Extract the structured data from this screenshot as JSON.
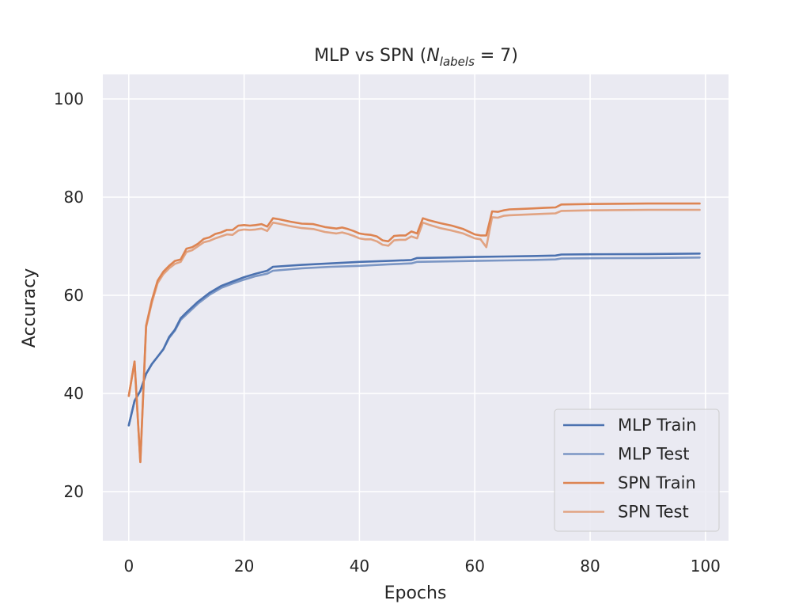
{
  "chart_data": {
    "type": "line",
    "title": {
      "prefix": "MLP vs SPN (",
      "math_symbol": "N",
      "math_subscript": "labels",
      "math_rest": " = 7",
      "suffix": ")"
    },
    "xlabel": "Epochs",
    "ylabel": "Accuracy",
    "xlim": [
      -4.5,
      104
    ],
    "ylim": [
      10,
      105
    ],
    "xticks": [
      0,
      20,
      40,
      60,
      80,
      100
    ],
    "yticks": [
      20,
      40,
      60,
      80,
      100
    ],
    "grid": true,
    "legend_position": "lower-right",
    "background_color": "#eaeaf2",
    "series": [
      {
        "name": "MLP Train",
        "color": "#4c72b0",
        "opacity": 1.0,
        "x": [
          0,
          1,
          2,
          3,
          4,
          5,
          6,
          7,
          8,
          9,
          10,
          12,
          14,
          16,
          18,
          20,
          22,
          24,
          25,
          30,
          35,
          40,
          45,
          49,
          50,
          55,
          60,
          65,
          70,
          74,
          75,
          80,
          90,
          99
        ],
        "values": [
          33.5,
          38.5,
          40.5,
          44,
          46,
          47.5,
          49,
          51.5,
          53,
          55.3,
          56.5,
          58.7,
          60.5,
          61.9,
          62.8,
          63.7,
          64.4,
          65,
          65.8,
          66.2,
          66.5,
          66.8,
          67.0,
          67.2,
          67.6,
          67.7,
          67.8,
          67.9,
          68.0,
          68.1,
          68.3,
          68.35,
          68.4,
          68.5
        ]
      },
      {
        "name": "MLP Test",
        "color": "#4c72b0",
        "opacity": 0.7,
        "x": [
          0,
          1,
          2,
          3,
          4,
          5,
          6,
          7,
          8,
          9,
          10,
          12,
          14,
          16,
          18,
          20,
          22,
          24,
          25,
          30,
          35,
          40,
          45,
          49,
          50,
          55,
          60,
          65,
          70,
          74,
          75,
          80,
          90,
          99
        ],
        "values": [
          33.5,
          38.5,
          40.5,
          44,
          46,
          47.5,
          49,
          51.3,
          52.8,
          55,
          56.1,
          58.3,
          60.1,
          61.5,
          62.4,
          63.2,
          63.9,
          64.4,
          65.0,
          65.5,
          65.8,
          66.0,
          66.3,
          66.5,
          66.8,
          66.9,
          67.0,
          67.1,
          67.2,
          67.3,
          67.5,
          67.55,
          67.6,
          67.7
        ]
      },
      {
        "name": "SPN Train",
        "color": "#dd8452",
        "opacity": 1.0,
        "x": [
          0,
          1,
          2,
          3,
          4,
          5,
          6,
          7,
          8,
          9,
          10,
          11,
          12,
          13,
          14,
          15,
          16,
          17,
          18,
          19,
          20,
          21,
          22,
          23,
          24,
          25,
          26,
          28,
          30,
          32,
          34,
          36,
          37,
          38,
          39,
          40,
          41,
          42,
          43,
          44,
          45,
          46,
          47,
          48,
          49,
          50,
          51,
          52,
          54,
          56,
          58,
          60,
          61,
          62,
          63,
          64,
          65,
          66,
          68,
          70,
          72,
          74,
          75,
          80,
          90,
          99
        ],
        "values": [
          39.5,
          46.5,
          26,
          53.8,
          59,
          63,
          64.8,
          66,
          67,
          67.3,
          69.5,
          69.8,
          70.5,
          71.5,
          71.8,
          72.5,
          72.8,
          73.3,
          73.3,
          74.2,
          74.3,
          74.2,
          74.3,
          74.5,
          74,
          75.7,
          75.5,
          75,
          74.6,
          74.5,
          73.9,
          73.6,
          73.8,
          73.5,
          73.1,
          72.6,
          72.4,
          72.3,
          72,
          71.2,
          71,
          72.1,
          72.2,
          72.2,
          73,
          72.6,
          75.7,
          75.3,
          74.7,
          74.2,
          73.5,
          72.4,
          72.2,
          72.2,
          77.1,
          77,
          77.3,
          77.5,
          77.6,
          77.7,
          77.8,
          77.9,
          78.5,
          78.6,
          78.7,
          78.7
        ]
      },
      {
        "name": "SPN Test",
        "color": "#dd8452",
        "opacity": 0.7,
        "x": [
          0,
          1,
          2,
          3,
          4,
          5,
          6,
          7,
          8,
          9,
          10,
          11,
          12,
          13,
          14,
          15,
          16,
          17,
          18,
          19,
          20,
          21,
          22,
          23,
          24,
          25,
          26,
          28,
          30,
          32,
          34,
          36,
          37,
          38,
          39,
          40,
          41,
          42,
          43,
          44,
          45,
          46,
          47,
          48,
          49,
          50,
          51,
          52,
          54,
          56,
          58,
          60,
          61,
          62,
          63,
          64,
          65,
          66,
          68,
          70,
          72,
          74,
          75,
          80,
          90,
          99
        ],
        "values": [
          39.5,
          46.5,
          26,
          53.5,
          58.5,
          62.5,
          64.3,
          65.5,
          66.4,
          66.8,
          68.8,
          69.2,
          70,
          70.8,
          71.1,
          71.6,
          72,
          72.4,
          72.3,
          73.2,
          73.4,
          73.3,
          73.4,
          73.6,
          73.1,
          74.8,
          74.6,
          74.1,
          73.7,
          73.5,
          72.9,
          72.6,
          72.8,
          72.5,
          72.1,
          71.6,
          71.4,
          71.4,
          71,
          70.3,
          70.1,
          71.2,
          71.3,
          71.3,
          72,
          71.6,
          74.8,
          74.4,
          73.7,
          73.2,
          72.6,
          71.6,
          71.4,
          69.8,
          75.9,
          75.8,
          76.2,
          76.3,
          76.4,
          76.5,
          76.6,
          76.7,
          77.2,
          77.3,
          77.4,
          77.4
        ]
      }
    ]
  }
}
